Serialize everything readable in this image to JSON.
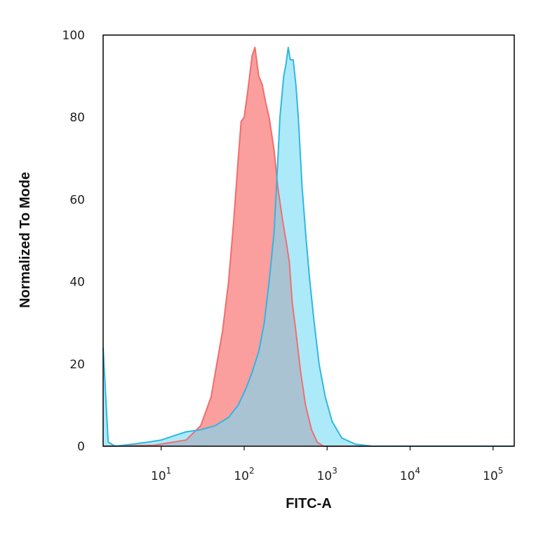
{
  "chart_data": {
    "type": "area",
    "xlabel": "FITC-A",
    "ylabel": "Normalized To Mode",
    "xscale": "log",
    "xlim": [
      2,
      180000
    ],
    "ylim": [
      0,
      100
    ],
    "x_ticks": [
      {
        "value": 10,
        "base": "10",
        "exp": "1"
      },
      {
        "value": 100,
        "base": "10",
        "exp": "2"
      },
      {
        "value": 1000,
        "base": "10",
        "exp": "3"
      },
      {
        "value": 10000,
        "base": "10",
        "exp": "4"
      },
      {
        "value": 100000,
        "base": "10",
        "exp": "5"
      }
    ],
    "y_ticks": [
      0,
      20,
      40,
      60,
      80,
      100
    ],
    "grid": false,
    "series": [
      {
        "color": "#f26d6d",
        "fill": "#fb9e9e",
        "points": [
          [
            2,
            0
          ],
          [
            8,
            0.2
          ],
          [
            20,
            1.5
          ],
          [
            30,
            5
          ],
          [
            40,
            12
          ],
          [
            55,
            28
          ],
          [
            65,
            40
          ],
          [
            75,
            55
          ],
          [
            85,
            70
          ],
          [
            92,
            79
          ],
          [
            100,
            80
          ],
          [
            110,
            86
          ],
          [
            125,
            95
          ],
          [
            135,
            97
          ],
          [
            150,
            90
          ],
          [
            165,
            88
          ],
          [
            180,
            84
          ],
          [
            200,
            80
          ],
          [
            230,
            72
          ],
          [
            255,
            63
          ],
          [
            290,
            55
          ],
          [
            320,
            50
          ],
          [
            350,
            45
          ],
          [
            380,
            35
          ],
          [
            420,
            28
          ],
          [
            480,
            18
          ],
          [
            550,
            10
          ],
          [
            650,
            4
          ],
          [
            760,
            1
          ],
          [
            900,
            0
          ],
          [
            180000,
            0
          ]
        ]
      },
      {
        "color": "#2fb7e0",
        "fill": "#75dcf6",
        "points": [
          [
            2,
            24
          ],
          [
            2.3,
            1
          ],
          [
            2.8,
            0
          ],
          [
            4.5,
            0.5
          ],
          [
            7,
            1
          ],
          [
            10,
            1.5
          ],
          [
            14,
            2.5
          ],
          [
            20,
            3.5
          ],
          [
            30,
            4
          ],
          [
            45,
            5
          ],
          [
            65,
            7
          ],
          [
            85,
            10
          ],
          [
            105,
            14
          ],
          [
            125,
            18
          ],
          [
            150,
            23
          ],
          [
            175,
            30
          ],
          [
            200,
            40
          ],
          [
            230,
            52
          ],
          [
            250,
            66
          ],
          [
            270,
            80
          ],
          [
            300,
            90
          ],
          [
            320,
            93
          ],
          [
            340,
            97
          ],
          [
            360,
            94
          ],
          [
            390,
            94
          ],
          [
            420,
            88
          ],
          [
            450,
            80
          ],
          [
            500,
            63
          ],
          [
            560,
            50
          ],
          [
            620,
            40
          ],
          [
            700,
            30
          ],
          [
            800,
            20
          ],
          [
            950,
            12
          ],
          [
            1150,
            6
          ],
          [
            1500,
            2
          ],
          [
            2200,
            0.5
          ],
          [
            3500,
            0
          ],
          [
            180000,
            0
          ]
        ]
      }
    ]
  }
}
